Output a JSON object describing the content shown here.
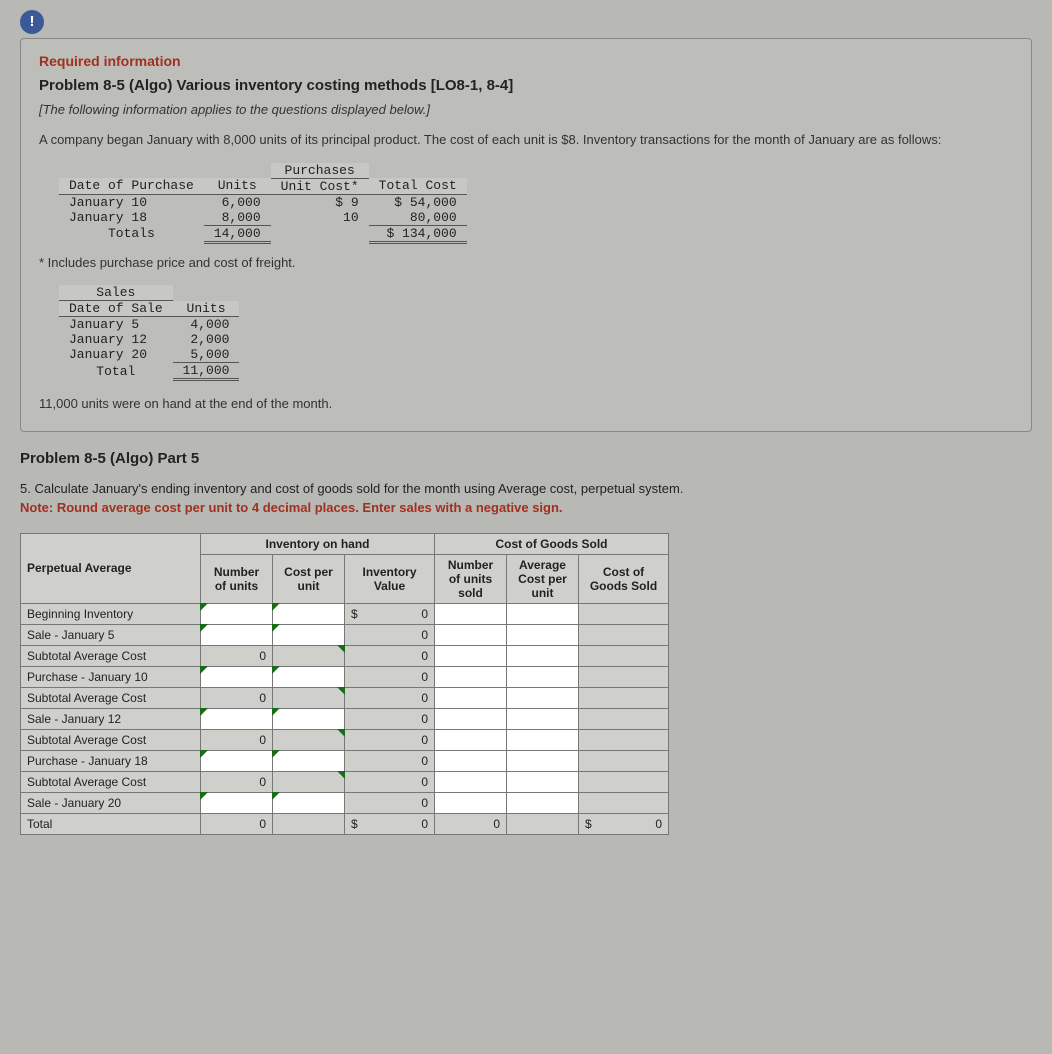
{
  "icon_glyph": "!",
  "required_info": "Required information",
  "problem_title": "Problem 8-5 (Algo) Various inventory costing methods [LO8-1, 8-4]",
  "italic_note": "[The following information applies to the questions displayed below.]",
  "intro": "A company began January with 8,000 units of its principal product. The cost of each unit is $8. Inventory transactions for the month of January are as follows:",
  "purchases": {
    "col_date": "Date of Purchase",
    "super_header": "Purchases",
    "col_units": "Units",
    "col_unit_cost": "Unit Cost*",
    "col_total": "Total Cost",
    "rows": [
      {
        "date": "January 10",
        "units": "6,000",
        "unit_cost": "$ 9",
        "total": "$ 54,000"
      },
      {
        "date": "January 18",
        "units": "8,000",
        "unit_cost": "10",
        "total": "80,000"
      }
    ],
    "totals_label": "Totals",
    "totals_units": "14,000",
    "totals_total": "$ 134,000"
  },
  "footnote": "* Includes purchase price and cost of freight.",
  "sales": {
    "super": "Sales",
    "col_date": "Date of Sale",
    "col_units": "Units",
    "rows": [
      {
        "date": "January 5",
        "units": "4,000"
      },
      {
        "date": "January 12",
        "units": "2,000"
      },
      {
        "date": "January 20",
        "units": "5,000"
      }
    ],
    "total_label": "Total",
    "total_units": "11,000"
  },
  "closing": "11,000 units were on hand at the end of the month.",
  "part_title": "Problem 8-5 (Algo) Part 5",
  "q5": "5. Calculate January's ending inventory and cost of goods sold for the month using Average cost, perpetual system.",
  "q5_note": "Note: Round average cost per unit to 4 decimal places. Enter sales with a negative sign.",
  "answer": {
    "corner": "Perpetual Average",
    "inv_header": "Inventory on hand",
    "cogs_header": "Cost of Goods Sold",
    "h_num_units": "Number of units",
    "h_cost_unit": "Cost per unit",
    "h_inv_val": "Inventory Value",
    "h_sold_units": "Number of units sold",
    "h_avg_cost": "Average Cost per unit",
    "h_cogs": "Cost of Goods Sold",
    "rows": [
      {
        "label": "Beginning Inventory",
        "units": "",
        "cpu": "",
        "inv_sym": "$",
        "inv": "0",
        "su": "",
        "ac": "",
        "cogs": ""
      },
      {
        "label": "Sale - January 5",
        "units": "",
        "cpu": "",
        "inv_sym": "",
        "inv": "0",
        "su": "",
        "ac": "",
        "cogs": ""
      },
      {
        "label": "Subtotal Average Cost",
        "units": "0",
        "cpu": "",
        "inv_sym": "",
        "inv": "0",
        "su": "",
        "ac": "",
        "cogs": ""
      },
      {
        "label": "Purchase - January 10",
        "units": "",
        "cpu": "",
        "inv_sym": "",
        "inv": "0",
        "su": "",
        "ac": "",
        "cogs": ""
      },
      {
        "label": "Subtotal Average Cost",
        "units": "0",
        "cpu": "",
        "inv_sym": "",
        "inv": "0",
        "su": "",
        "ac": "",
        "cogs": ""
      },
      {
        "label": "Sale - January 12",
        "units": "",
        "cpu": "",
        "inv_sym": "",
        "inv": "0",
        "su": "",
        "ac": "",
        "cogs": ""
      },
      {
        "label": "Subtotal Average Cost",
        "units": "0",
        "cpu": "",
        "inv_sym": "",
        "inv": "0",
        "su": "",
        "ac": "",
        "cogs": ""
      },
      {
        "label": "Purchase - January 18",
        "units": "",
        "cpu": "",
        "inv_sym": "",
        "inv": "0",
        "su": "",
        "ac": "",
        "cogs": ""
      },
      {
        "label": "Subtotal Average Cost",
        "units": "0",
        "cpu": "",
        "inv_sym": "",
        "inv": "0",
        "su": "",
        "ac": "",
        "cogs": ""
      },
      {
        "label": "Sale - January 20",
        "units": "",
        "cpu": "",
        "inv_sym": "",
        "inv": "0",
        "su": "",
        "ac": "",
        "cogs": ""
      }
    ],
    "total_label": "Total",
    "total_units": "0",
    "total_inv_sym": "$",
    "total_inv": "0",
    "total_su": "0",
    "total_cogs_sym": "$",
    "total_cogs": "0"
  }
}
